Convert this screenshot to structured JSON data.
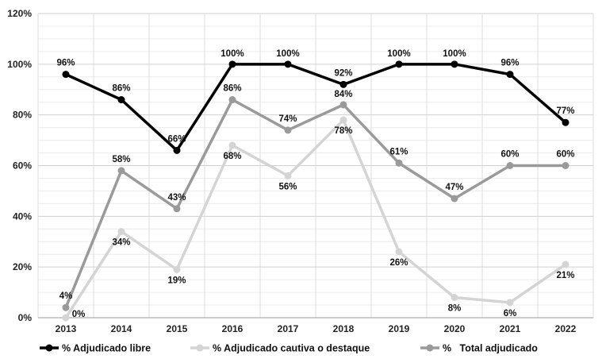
{
  "chart_data": {
    "type": "line",
    "categories": [
      "2013",
      "2014",
      "2015",
      "2016",
      "2017",
      "2018",
      "2019",
      "2020",
      "2021",
      "2022"
    ],
    "ylim": [
      0,
      120
    ],
    "yticks": [
      0,
      20,
      40,
      60,
      80,
      100,
      120
    ],
    "ytick_labels": [
      "0%",
      "20%",
      "40%",
      "60%",
      "80%",
      "100%",
      "120%"
    ],
    "grid": true,
    "legend_position": "bottom",
    "series": [
      {
        "name": "% Adjudicado libre",
        "color": "#000000",
        "values": [
          96,
          86,
          66,
          100,
          100,
          92,
          100,
          100,
          96,
          77
        ],
        "labels": [
          "96%",
          "86%",
          "66%",
          "100%",
          "100%",
          "92%",
          "100%",
          "100%",
          "96%",
          "77%"
        ]
      },
      {
        "name": "% Adjudicado cautiva o destaque",
        "color": "#d4d4d4",
        "values": [
          0,
          34,
          19,
          68,
          56,
          78,
          26,
          8,
          6,
          21
        ],
        "labels": [
          "0%",
          "34%",
          "19%",
          "68%",
          "56%",
          "78%",
          "26%",
          "8%",
          "6%",
          "21%"
        ]
      },
      {
        "name": "%   Total adjudicado",
        "color": "#9a9a9a",
        "values": [
          4,
          58,
          43,
          86,
          74,
          84,
          61,
          47,
          60,
          60
        ],
        "labels": [
          "4%",
          "58%",
          "43%",
          "86%",
          "74%",
          "84%",
          "61%",
          "47%",
          "60%",
          "60%"
        ]
      }
    ]
  }
}
